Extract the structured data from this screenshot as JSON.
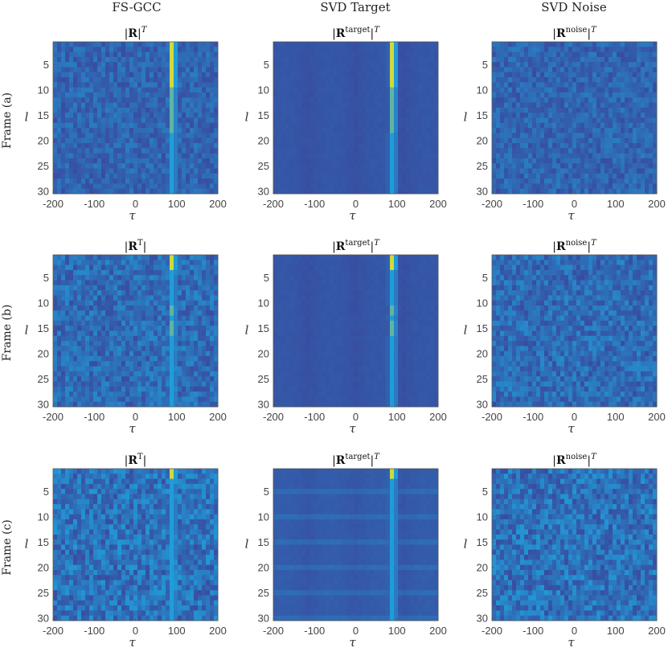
{
  "figure": {
    "column_titles": [
      "FS-GCC",
      "SVD Target",
      "SVD Noise"
    ],
    "row_labels": [
      "Frame (a)",
      "Frame (b)",
      "Frame (c)"
    ]
  },
  "colors": {
    "low": "#3c3f96",
    "mid": "#1fa1dc",
    "high": "#f8e61a",
    "axis": "#444444"
  },
  "chart_data": [
    {
      "type": "heatmap",
      "row": 0,
      "col": 0,
      "title": "|R|^T",
      "title_math": {
        "bold": "R",
        "sup": "",
        "suffix_sup": "T",
        "inner_T": false
      },
      "xlabel": "τ",
      "ylabel": "l",
      "xlim": [
        -200,
        200
      ],
      "ylim": [
        1,
        30
      ],
      "xticks": [
        "-200",
        "-100",
        "0",
        "100",
        "200"
      ],
      "yticks": [
        "5",
        "10",
        "15",
        "20",
        "25",
        "30"
      ],
      "peak_tau": 90,
      "peak_frames": [
        1,
        2,
        3,
        4,
        5,
        6,
        7,
        8,
        9,
        10,
        11,
        12,
        13,
        14,
        15,
        16,
        17,
        18
      ],
      "noise_level": 0.35
    },
    {
      "type": "heatmap",
      "row": 0,
      "col": 1,
      "title": "|R^target|^T",
      "title_math": {
        "bold": "R",
        "sup": "target",
        "suffix_sup": "T",
        "inner_T": false
      },
      "xlabel": "τ",
      "ylabel": "l",
      "xlim": [
        -200,
        200
      ],
      "ylim": [
        1,
        30
      ],
      "xticks": [
        "-200",
        "-100",
        "0",
        "100",
        "200"
      ],
      "yticks": [
        "5",
        "10",
        "15",
        "20",
        "25",
        "30"
      ],
      "peak_tau": 90,
      "peak_frames": [
        1,
        2,
        3,
        4,
        5,
        6,
        7,
        8,
        9,
        10,
        11,
        12,
        13,
        14,
        15,
        16,
        17,
        18
      ],
      "noise_level": 0.05
    },
    {
      "type": "heatmap",
      "row": 0,
      "col": 2,
      "title": "|R^noise|^T",
      "title_math": {
        "bold": "R",
        "sup": "noise",
        "suffix_sup": "T",
        "inner_T": false
      },
      "xlabel": "τ",
      "ylabel": "l",
      "xlim": [
        -200,
        200
      ],
      "ylim": [
        1,
        30
      ],
      "xticks": [
        "-200",
        "-100",
        "0",
        "100",
        "200"
      ],
      "yticks": [
        "5",
        "10",
        "15",
        "20",
        "25",
        "30"
      ],
      "peak_tau": null,
      "peak_frames": [],
      "noise_level": 0.35
    },
    {
      "type": "heatmap",
      "row": 1,
      "col": 0,
      "title": "|R^T|",
      "title_math": {
        "bold": "R",
        "sup": "T",
        "suffix_sup": "",
        "inner_T": true
      },
      "xlabel": "τ",
      "ylabel": "l",
      "xlim": [
        -200,
        200
      ],
      "ylim": [
        1,
        30
      ],
      "xticks": [
        "-200",
        "-100",
        "0",
        "100",
        "200"
      ],
      "yticks": [
        "5",
        "10",
        "15",
        "20",
        "25",
        "30"
      ],
      "peak_tau": 90,
      "peak_frames": [
        1,
        2,
        3,
        11,
        12,
        14,
        15,
        16
      ],
      "noise_level": 0.45
    },
    {
      "type": "heatmap",
      "row": 1,
      "col": 1,
      "title": "|R^target|^T",
      "title_math": {
        "bold": "R",
        "sup": "target",
        "suffix_sup": "T",
        "inner_T": false
      },
      "xlabel": "τ",
      "ylabel": "l",
      "xlim": [
        -200,
        200
      ],
      "ylim": [
        1,
        30
      ],
      "xticks": [
        "-200",
        "-100",
        "0",
        "100",
        "200"
      ],
      "yticks": [
        "5",
        "10",
        "15",
        "20",
        "25",
        "30"
      ],
      "peak_tau": 90,
      "peak_frames": [
        1,
        2,
        3,
        11,
        12,
        14,
        15,
        16
      ],
      "noise_level": 0.05
    },
    {
      "type": "heatmap",
      "row": 1,
      "col": 2,
      "title": "|R^noise|^T",
      "title_math": {
        "bold": "R",
        "sup": "noise",
        "suffix_sup": "T",
        "inner_T": false
      },
      "xlabel": "τ",
      "ylabel": "l",
      "xlim": [
        -200,
        200
      ],
      "ylim": [
        1,
        30
      ],
      "xticks": [
        "-200",
        "-100",
        "0",
        "100",
        "200"
      ],
      "yticks": [
        "5",
        "10",
        "15",
        "20",
        "25",
        "30"
      ],
      "peak_tau": null,
      "peak_frames": [],
      "noise_level": 0.45
    },
    {
      "type": "heatmap",
      "row": 2,
      "col": 0,
      "title": "|R^T|",
      "title_math": {
        "bold": "R",
        "sup": "T",
        "suffix_sup": "",
        "inner_T": true
      },
      "xlabel": "τ",
      "ylabel": "l",
      "xlim": [
        -200,
        200
      ],
      "ylim": [
        1,
        30
      ],
      "xticks": [
        "-200",
        "-100",
        "0",
        "100",
        "200"
      ],
      "yticks": [
        "5",
        "10",
        "15",
        "20",
        "25",
        "30"
      ],
      "peak_tau": 90,
      "peak_frames": [
        1,
        2
      ],
      "noise_level": 0.55
    },
    {
      "type": "heatmap",
      "row": 2,
      "col": 1,
      "title": "|R^target|^T",
      "title_math": {
        "bold": "R",
        "sup": "target",
        "suffix_sup": "T",
        "inner_T": false
      },
      "xlabel": "τ",
      "ylabel": "l",
      "xlim": [
        -200,
        200
      ],
      "ylim": [
        1,
        30
      ],
      "xticks": [
        "-200",
        "-100",
        "0",
        "100",
        "200"
      ],
      "yticks": [
        "5",
        "10",
        "15",
        "20",
        "25",
        "30"
      ],
      "peak_tau": 90,
      "peak_frames": [
        1,
        2
      ],
      "noise_level": 0.15
    },
    {
      "type": "heatmap",
      "row": 2,
      "col": 2,
      "title": "|R^noise|^T",
      "title_math": {
        "bold": "R",
        "sup": "noise",
        "suffix_sup": "T",
        "inner_T": false
      },
      "xlabel": "τ",
      "ylabel": "l",
      "xlim": [
        -200,
        200
      ],
      "ylim": [
        1,
        30
      ],
      "xticks": [
        "-200",
        "-100",
        "0",
        "100",
        "200"
      ],
      "yticks": [
        "5",
        "10",
        "15",
        "20",
        "25",
        "30"
      ],
      "peak_tau": null,
      "peak_frames": [],
      "noise_level": 0.55
    }
  ]
}
